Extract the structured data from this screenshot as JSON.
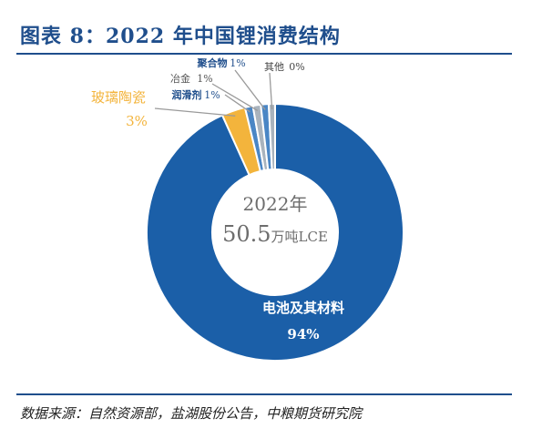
{
  "header": {
    "title": "图表 8：2022 年中国锂消费结构"
  },
  "footer": {
    "source": "数据来源：自然资源部，盐湖股份公告，中粮期货研究院"
  },
  "center": {
    "year": "2022年",
    "value": "50.5",
    "unit": "万吨LCE"
  },
  "colors": {
    "title": "#1f4e8c",
    "battery": "#1b5fa8",
    "ceramics": "#f3b43c",
    "small_blue": "#4a86c5",
    "small_gray": "#a9b3bd"
  },
  "chart_data": {
    "type": "pie",
    "donut": true,
    "series": [
      {
        "name": "电池及其材料",
        "value": 94,
        "label": "94%"
      },
      {
        "name": "玻璃陶瓷",
        "value": 3,
        "label": "3%"
      },
      {
        "name": "润滑剂",
        "value": 1,
        "label": "1%"
      },
      {
        "name": "冶金",
        "value": 1,
        "label": "1%"
      },
      {
        "name": "聚合物",
        "value": 1,
        "label": "1%"
      },
      {
        "name": "其他",
        "value": 0,
        "label": "0%"
      }
    ]
  }
}
